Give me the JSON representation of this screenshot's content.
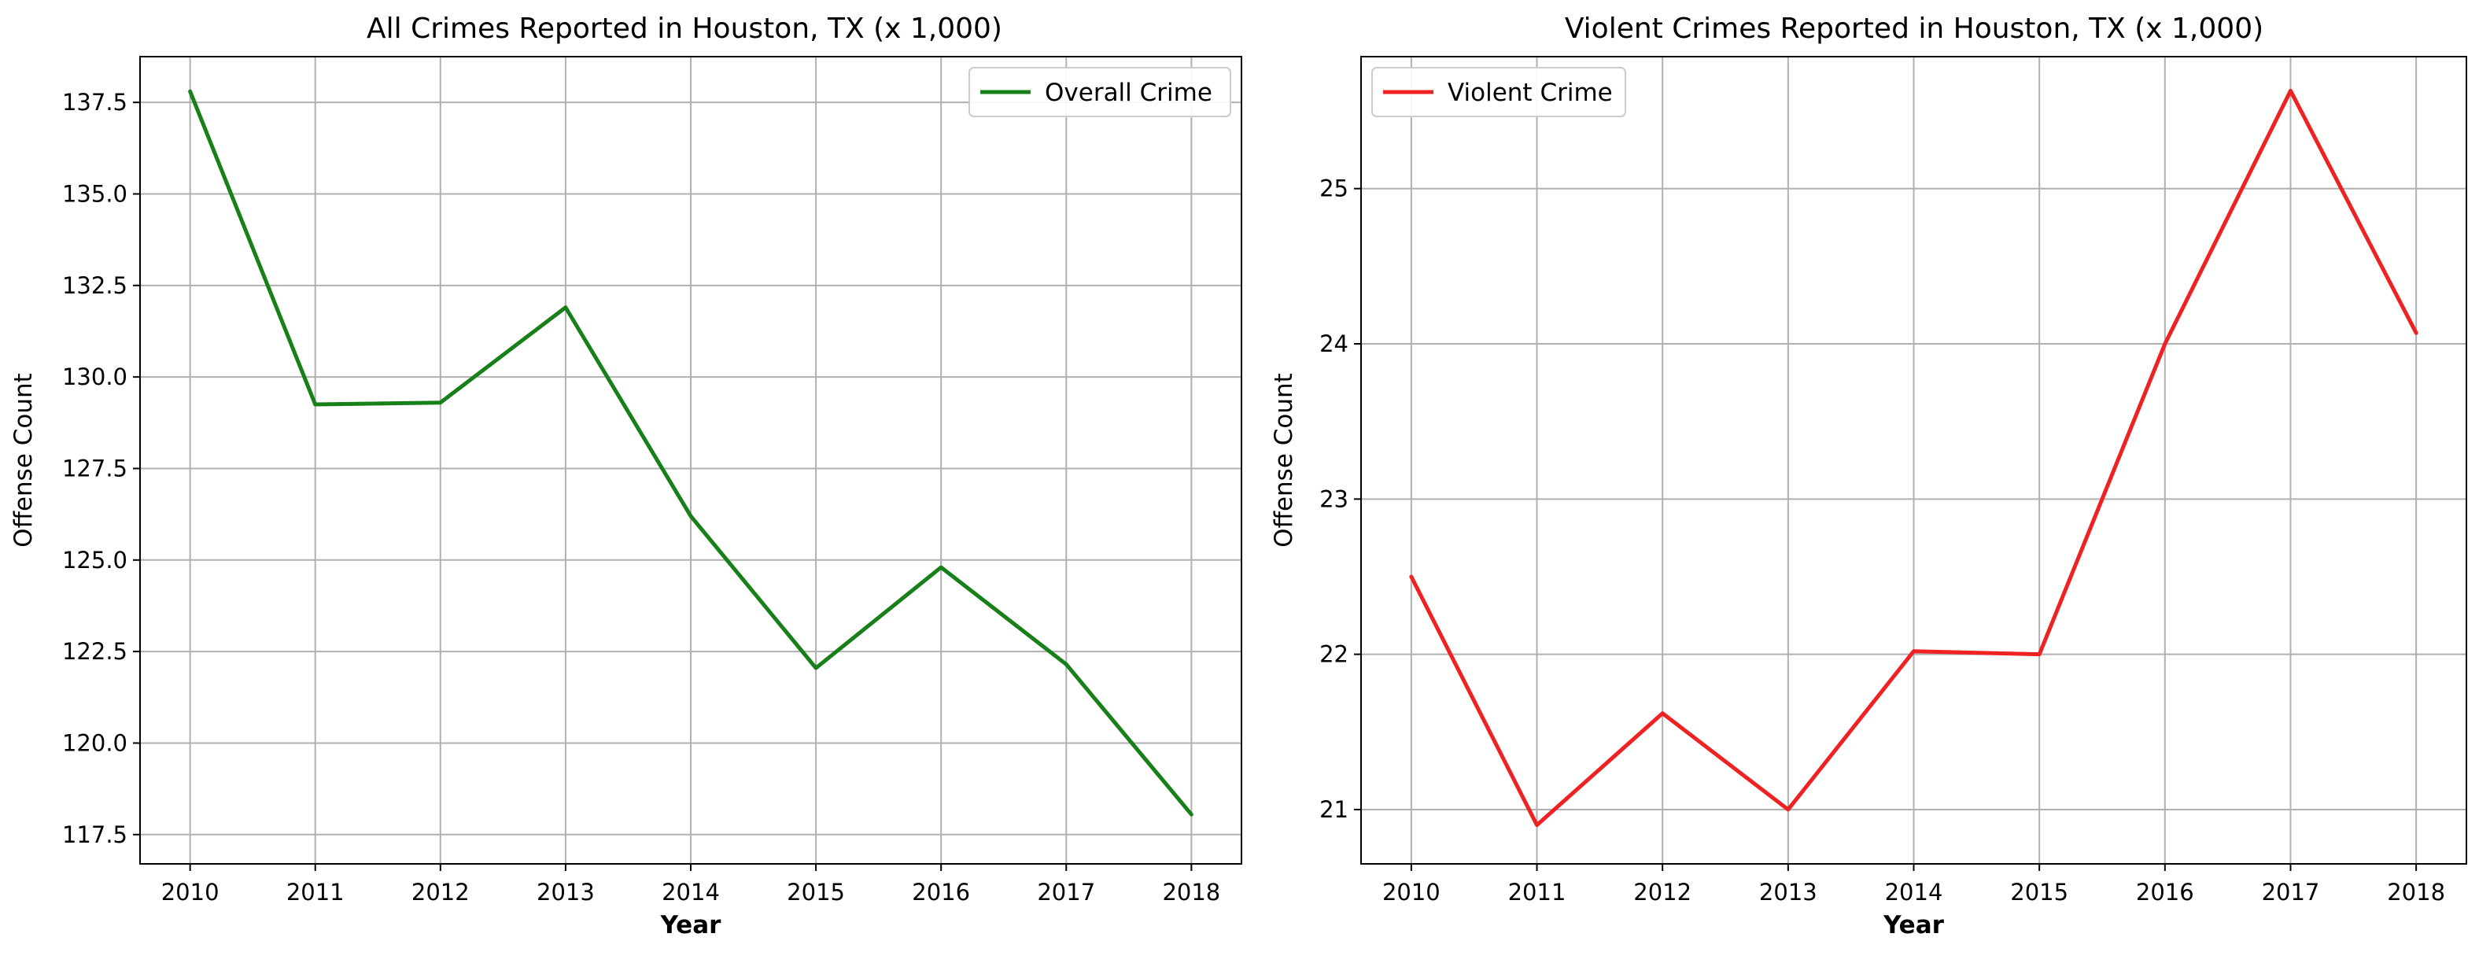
{
  "chart_data": [
    {
      "type": "line",
      "title": "All Crimes Reported in Houston, TX (x 1,000)",
      "xlabel": "Year",
      "ylabel": "Offense Count",
      "x": [
        2010,
        2011,
        2012,
        2013,
        2014,
        2015,
        2016,
        2017,
        2018
      ],
      "xlim": [
        2009.6,
        2018.4
      ],
      "ylim": [
        116.7,
        138.75
      ],
      "yticks": [
        117.5,
        120.0,
        122.5,
        125.0,
        127.5,
        130.0,
        132.5,
        135.0,
        137.5
      ],
      "ytick_labels": [
        "117.5",
        "120.0",
        "122.5",
        "125.0",
        "127.5",
        "130.0",
        "132.5",
        "135.0",
        "137.5"
      ],
      "grid": true,
      "legend_position": "upper right",
      "series": [
        {
          "name": "Overall Crime",
          "color": "#188018",
          "values": [
            137.8,
            129.25,
            129.3,
            131.9,
            126.2,
            122.05,
            124.8,
            122.15,
            118.05
          ]
        }
      ]
    },
    {
      "type": "line",
      "title": "Violent Crimes Reported in Houston, TX (x 1,000)",
      "xlabel": "Year",
      "ylabel": "Offense Count",
      "x": [
        2010,
        2011,
        2012,
        2013,
        2014,
        2015,
        2016,
        2017,
        2018
      ],
      "xlim": [
        2009.6,
        2018.4
      ],
      "ylim": [
        20.65,
        25.85
      ],
      "yticks": [
        21,
        22,
        23,
        24,
        25
      ],
      "ytick_labels": [
        "21",
        "22",
        "23",
        "24",
        "25"
      ],
      "grid": true,
      "legend_position": "upper left",
      "series": [
        {
          "name": "Violent Crime",
          "color": "#ee2222",
          "values": [
            22.5,
            20.9,
            21.62,
            21.0,
            22.02,
            22.0,
            24.0,
            25.63,
            24.07
          ]
        }
      ]
    }
  ]
}
